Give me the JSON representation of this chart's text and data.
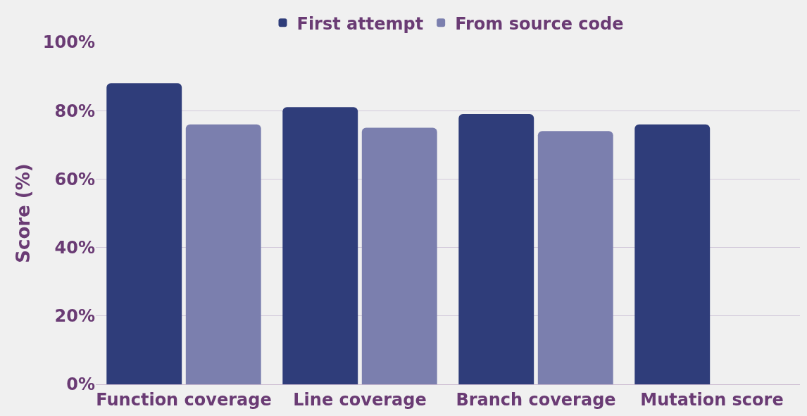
{
  "chart_data": {
    "type": "bar",
    "ylabel": "Score (%)",
    "categories": [
      "Function coverage",
      "Line coverage",
      "Branch coverage",
      "Mutation score"
    ],
    "series": [
      {
        "name": "First attempt",
        "color": "#2f3d7a",
        "values": [
          88,
          81,
          79,
          76
        ]
      },
      {
        "name": "From source code",
        "color": "#7b7fae",
        "values": [
          76,
          75,
          74,
          null
        ]
      }
    ],
    "ylim": [
      0,
      100
    ],
    "yticks": [
      {
        "value": 0,
        "label": "0%"
      },
      {
        "value": 20,
        "label": "20%"
      },
      {
        "value": 40,
        "label": "40%"
      },
      {
        "value": 60,
        "label": "60%"
      },
      {
        "value": 80,
        "label": "80%"
      },
      {
        "value": 100,
        "label": "100%"
      }
    ],
    "grid": "y",
    "legend": "top"
  }
}
